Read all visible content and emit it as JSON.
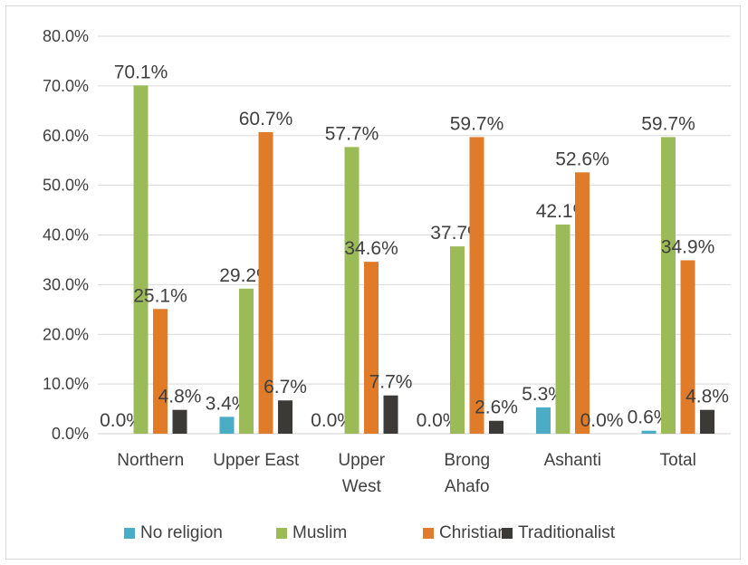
{
  "chart_data": {
    "type": "bar",
    "title": "",
    "xlabel": "",
    "ylabel": "",
    "ylim": [
      0,
      80
    ],
    "yticks": [
      "0.0%",
      "10.0%",
      "20.0%",
      "30.0%",
      "40.0%",
      "50.0%",
      "60.0%",
      "70.0%",
      "80.0%"
    ],
    "grid": true,
    "legend_position": "bottom",
    "categories": [
      [
        "Northern"
      ],
      [
        "Upper East"
      ],
      [
        "Upper",
        "West"
      ],
      [
        "Brong",
        "Ahafo"
      ],
      [
        "Ashanti"
      ],
      [
        "Total"
      ]
    ],
    "series": [
      {
        "name": "No religion",
        "color": "#4bacc6",
        "values": [
          0.0,
          3.4,
          0.0,
          0.0,
          5.3,
          0.6
        ],
        "labels": [
          "0.0%",
          "3.4%",
          "0.0%",
          "0.0%",
          "5.3%",
          "0.6%"
        ]
      },
      {
        "name": "Muslim",
        "color": "#9bbb59",
        "values": [
          70.1,
          29.2,
          57.7,
          37.7,
          42.1,
          59.7
        ],
        "labels": [
          "70.1%",
          "29.2%",
          "57.7%",
          "37.7%",
          "42.1%",
          "59.7%"
        ]
      },
      {
        "name": "Christian",
        "color": "#e07b2a",
        "values": [
          25.1,
          60.7,
          34.6,
          59.7,
          52.6,
          34.9
        ],
        "labels": [
          "25.1%",
          "60.7%",
          "34.6%",
          "59.7%",
          "52.6%",
          "34.9%"
        ]
      },
      {
        "name": "Traditionalist",
        "color": "#3b3a36",
        "values": [
          4.8,
          6.7,
          7.7,
          2.6,
          0.0,
          4.8
        ],
        "labels": [
          "4.8%",
          "6.7%",
          "7.7%",
          "2.6%",
          "0.0%",
          "4.8%"
        ]
      }
    ]
  }
}
